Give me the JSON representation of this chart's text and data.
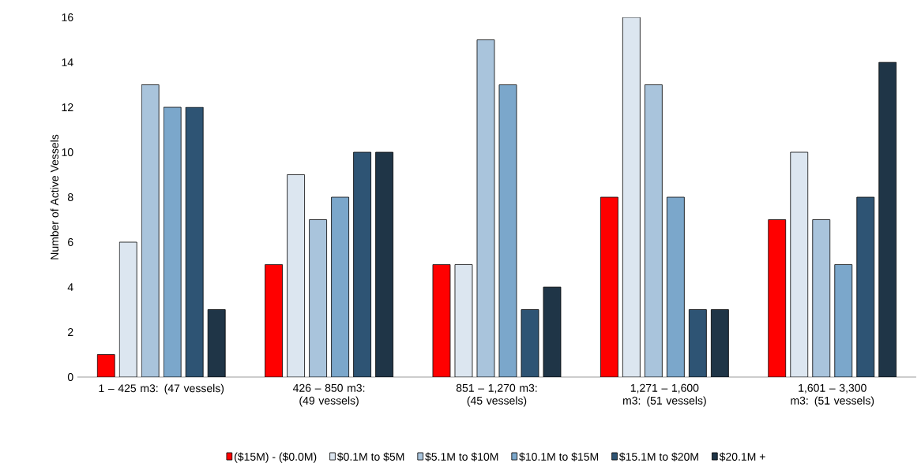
{
  "chart_data": {
    "type": "bar",
    "ylabel": "Number of Active Vessels",
    "categories": [
      "1 – 425 m3: (47 vessels)",
      "426 – 850 m3: (49 vessels)",
      "851 – 1,270 m3: (45 vessels)",
      "1,271 – 1,600 m3: (51 vessels)",
      "1,601 – 3,300 m3: (51 vessels)"
    ],
    "series": [
      {
        "name": "($15M) - ($0.0M)",
        "color": "#ff0000",
        "values": [
          1,
          5,
          5,
          8,
          7
        ]
      },
      {
        "name": "$0.1M to $5M",
        "color": "#dce6f0",
        "values": [
          6,
          9,
          5,
          16,
          10
        ]
      },
      {
        "name": "$5.1M to $10M",
        "color": "#a9c4dc",
        "values": [
          13,
          7,
          15,
          13,
          7
        ]
      },
      {
        "name": "$10.1M to $15M",
        "color": "#7ba7cb",
        "values": [
          12,
          8,
          13,
          8,
          5
        ]
      },
      {
        "name": "$15.1M to $20M",
        "color": "#2e5474",
        "values": [
          12,
          10,
          3,
          3,
          8
        ]
      },
      {
        "name": "$20.1M +",
        "color": "#1f3547",
        "values": [
          3,
          10,
          4,
          3,
          14
        ]
      }
    ],
    "ylim": [
      0,
      16
    ],
    "yticks": [
      0,
      2,
      4,
      6,
      8,
      10,
      12,
      14,
      16
    ],
    "legend": "bottom"
  }
}
